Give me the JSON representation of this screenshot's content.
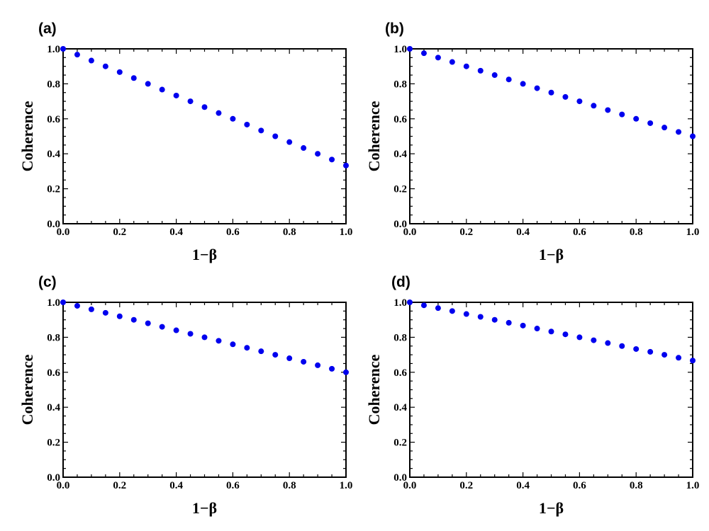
{
  "chart_data": [
    {
      "type": "scatter",
      "panel_label": "(a)",
      "xlabel": "1−β",
      "ylabel": "Coherence",
      "xlim": [
        0,
        1
      ],
      "ylim": [
        0,
        1
      ],
      "xticks": [
        "0.0",
        "0.2",
        "0.4",
        "0.6",
        "0.8",
        "1.0"
      ],
      "yticks": [
        "0.0",
        "0.2",
        "0.4",
        "0.6",
        "0.8",
        "1.0"
      ],
      "marker_color": "#0000ee",
      "x": [
        0,
        0.05,
        0.1,
        0.15,
        0.2,
        0.25,
        0.3,
        0.35,
        0.4,
        0.45,
        0.5,
        0.55,
        0.6,
        0.65,
        0.7,
        0.75,
        0.8,
        0.85,
        0.9,
        0.95,
        1.0
      ],
      "y": [
        1.0,
        0.967,
        0.933,
        0.9,
        0.867,
        0.833,
        0.8,
        0.767,
        0.733,
        0.7,
        0.667,
        0.633,
        0.6,
        0.567,
        0.533,
        0.5,
        0.467,
        0.433,
        0.4,
        0.367,
        0.333
      ]
    },
    {
      "type": "scatter",
      "panel_label": "(b)",
      "xlabel": "1−β",
      "ylabel": "Coherence",
      "xlim": [
        0,
        1
      ],
      "ylim": [
        0,
        1
      ],
      "xticks": [
        "0.0",
        "0.2",
        "0.4",
        "0.6",
        "0.8",
        "1.0"
      ],
      "yticks": [
        "0.0",
        "0.2",
        "0.4",
        "0.6",
        "0.8",
        "1.0"
      ],
      "marker_color": "#0000ee",
      "x": [
        0,
        0.05,
        0.1,
        0.15,
        0.2,
        0.25,
        0.3,
        0.35,
        0.4,
        0.45,
        0.5,
        0.55,
        0.6,
        0.65,
        0.7,
        0.75,
        0.8,
        0.85,
        0.9,
        0.95,
        1.0
      ],
      "y": [
        1.0,
        0.975,
        0.95,
        0.925,
        0.9,
        0.875,
        0.85,
        0.825,
        0.8,
        0.775,
        0.75,
        0.725,
        0.7,
        0.675,
        0.65,
        0.625,
        0.6,
        0.575,
        0.55,
        0.525,
        0.5
      ]
    },
    {
      "type": "scatter",
      "panel_label": "(c)",
      "xlabel": "1−β",
      "ylabel": "Coherence",
      "xlim": [
        0,
        1
      ],
      "ylim": [
        0,
        1
      ],
      "xticks": [
        "0.0",
        "0.2",
        "0.4",
        "0.6",
        "0.8",
        "1.0"
      ],
      "yticks": [
        "0.0",
        "0.2",
        "0.4",
        "0.6",
        "0.8",
        "1.0"
      ],
      "marker_color": "#0000ee",
      "x": [
        0,
        0.05,
        0.1,
        0.15,
        0.2,
        0.25,
        0.3,
        0.35,
        0.4,
        0.45,
        0.5,
        0.55,
        0.6,
        0.65,
        0.7,
        0.75,
        0.8,
        0.85,
        0.9,
        0.95,
        1.0
      ],
      "y": [
        1.0,
        0.98,
        0.96,
        0.94,
        0.92,
        0.9,
        0.88,
        0.86,
        0.84,
        0.82,
        0.8,
        0.78,
        0.76,
        0.74,
        0.72,
        0.7,
        0.68,
        0.66,
        0.64,
        0.62,
        0.6
      ]
    },
    {
      "type": "scatter",
      "panel_label": "(d)",
      "xlabel": "1−β",
      "ylabel": "Coherence",
      "xlim": [
        0,
        1
      ],
      "ylim": [
        0,
        1
      ],
      "xticks": [
        "0.0",
        "0.2",
        "0.4",
        "0.6",
        "0.8",
        "1.0"
      ],
      "yticks": [
        "0.0",
        "0.2",
        "0.4",
        "0.6",
        "0.8",
        "1.0"
      ],
      "marker_color": "#0000ee",
      "x": [
        0,
        0.05,
        0.1,
        0.15,
        0.2,
        0.25,
        0.3,
        0.35,
        0.4,
        0.45,
        0.5,
        0.55,
        0.6,
        0.65,
        0.7,
        0.75,
        0.8,
        0.85,
        0.9,
        0.95,
        1.0
      ],
      "y": [
        1.0,
        0.983,
        0.967,
        0.95,
        0.933,
        0.917,
        0.9,
        0.883,
        0.867,
        0.85,
        0.833,
        0.817,
        0.8,
        0.783,
        0.767,
        0.75,
        0.733,
        0.717,
        0.7,
        0.683,
        0.667
      ]
    }
  ]
}
